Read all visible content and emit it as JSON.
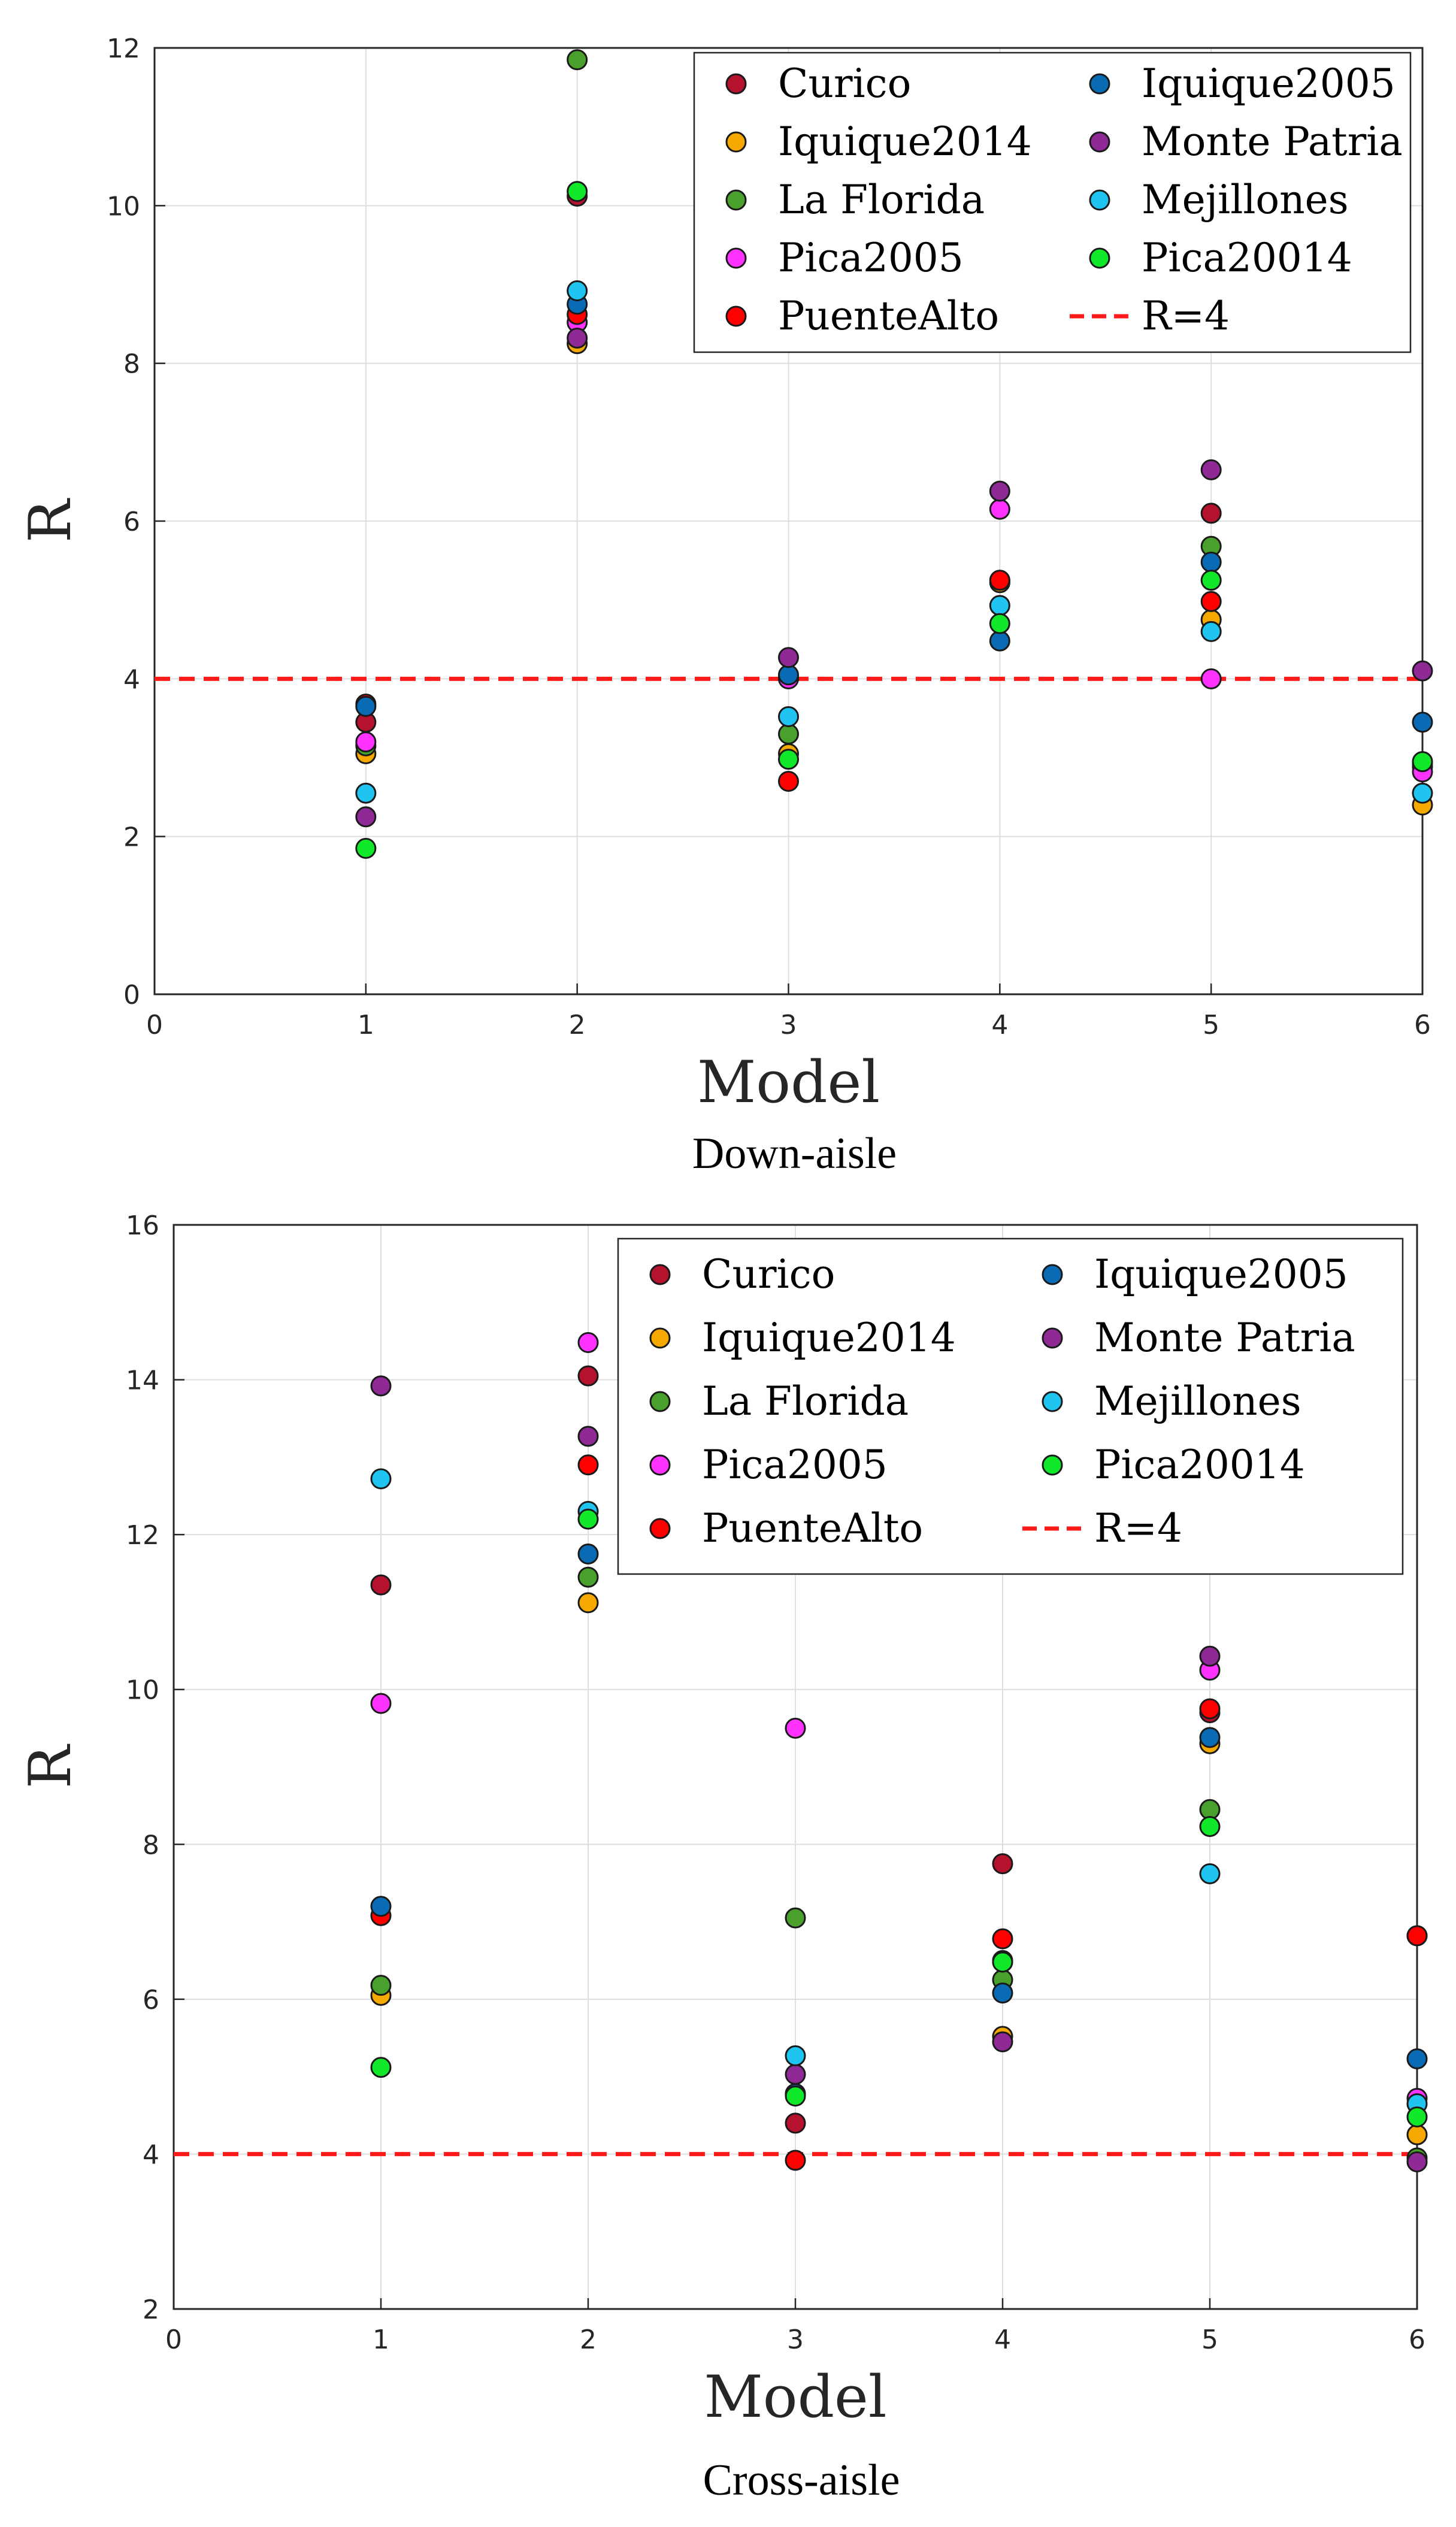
{
  "chart_data": [
    {
      "type": "scatter",
      "title": "",
      "caption": "Down-aisle",
      "xlabel": "Model",
      "ylabel": "R",
      "xlim": [
        0,
        6
      ],
      "ylim": [
        0,
        12
      ],
      "xticks": [
        "0",
        "1",
        "2",
        "3",
        "4",
        "5",
        "6"
      ],
      "yticks": [
        "0",
        "2",
        "4",
        "6",
        "8",
        "10",
        "12"
      ],
      "grid": true,
      "legend_position": "top-right",
      "reference_line": {
        "label": "R=4",
        "y": 4,
        "color": "#ff1a1a"
      },
      "x": [
        1,
        2,
        3,
        4,
        5,
        6
      ],
      "series": [
        {
          "name": "Curico",
          "color": "#b5122e",
          "values": [
            3.45,
            10.12,
            4.02,
            5.22,
            6.1,
            2.92
          ]
        },
        {
          "name": "Iquique2014",
          "color": "#f5a800",
          "values": [
            3.05,
            8.25,
            3.05,
            5.22,
            4.75,
            2.4
          ]
        },
        {
          "name": "La Florida",
          "color": "#4aa02c",
          "values": [
            3.15,
            11.85,
            3.3,
            5.25,
            5.68,
            2.88
          ]
        },
        {
          "name": "Pica2005",
          "color": "#ff33ff",
          "values": [
            3.2,
            8.52,
            4.0,
            6.15,
            4.0,
            2.82
          ]
        },
        {
          "name": "PuenteAlto",
          "color": "#ff0000",
          "values": [
            3.68,
            8.62,
            2.7,
            5.25,
            4.98,
            2.95
          ]
        },
        {
          "name": "Iquique2005",
          "color": "#0a6bb5",
          "values": [
            3.65,
            8.75,
            4.05,
            4.48,
            5.48,
            3.45
          ]
        },
        {
          "name": "Monte Patria",
          "color": "#8e2996",
          "values": [
            2.25,
            8.32,
            4.27,
            6.38,
            6.65,
            4.1
          ]
        },
        {
          "name": "Mejillones",
          "color": "#1fc4f0",
          "values": [
            2.55,
            8.92,
            3.52,
            4.93,
            4.6,
            2.55
          ]
        },
        {
          "name": "Pica20014",
          "color": "#12e82a",
          "values": [
            1.85,
            10.18,
            2.98,
            4.7,
            5.25,
            2.95
          ]
        }
      ]
    },
    {
      "type": "scatter",
      "title": "",
      "caption": "Cross-aisle",
      "xlabel": "Model",
      "ylabel": "R",
      "xlim": [
        0,
        6
      ],
      "ylim": [
        2,
        16
      ],
      "xticks": [
        "0",
        "1",
        "2",
        "3",
        "4",
        "5",
        "6"
      ],
      "yticks": [
        "2",
        "4",
        "6",
        "8",
        "10",
        "12",
        "14",
        "16"
      ],
      "grid": true,
      "legend_position": "top-right",
      "reference_line": {
        "label": "R=4",
        "y": 4,
        "color": "#ff1a1a"
      },
      "x": [
        1,
        2,
        3,
        4,
        5,
        6
      ],
      "series": [
        {
          "name": "Curico",
          "color": "#b5122e",
          "values": [
            11.35,
            14.05,
            4.4,
            7.75,
            9.7,
            6.82
          ]
        },
        {
          "name": "Iquique2014",
          "color": "#f5a800",
          "values": [
            6.05,
            11.12,
            4.78,
            5.52,
            9.3,
            4.25
          ]
        },
        {
          "name": "La Florida",
          "color": "#4aa02c",
          "values": [
            6.18,
            11.45,
            7.05,
            6.25,
            8.45,
            3.95
          ]
        },
        {
          "name": "Pica2005",
          "color": "#ff33ff",
          "values": [
            9.82,
            14.48,
            9.5,
            6.48,
            10.25,
            4.72
          ]
        },
        {
          "name": "PuenteAlto",
          "color": "#ff0000",
          "values": [
            7.08,
            12.9,
            3.92,
            6.78,
            9.75,
            6.82
          ]
        },
        {
          "name": "Iquique2005",
          "color": "#0a6bb5",
          "values": [
            7.2,
            11.75,
            4.78,
            6.08,
            9.38,
            5.23
          ]
        },
        {
          "name": "Monte Patria",
          "color": "#8e2996",
          "values": [
            13.92,
            13.27,
            5.03,
            5.45,
            10.43,
            3.9
          ]
        },
        {
          "name": "Mejillones",
          "color": "#1fc4f0",
          "values": [
            12.72,
            12.3,
            5.27,
            6.5,
            7.62,
            4.65
          ]
        },
        {
          "name": "Pica20014",
          "color": "#12e82a",
          "values": [
            5.12,
            12.2,
            4.75,
            6.48,
            8.23,
            4.48
          ]
        }
      ]
    }
  ]
}
